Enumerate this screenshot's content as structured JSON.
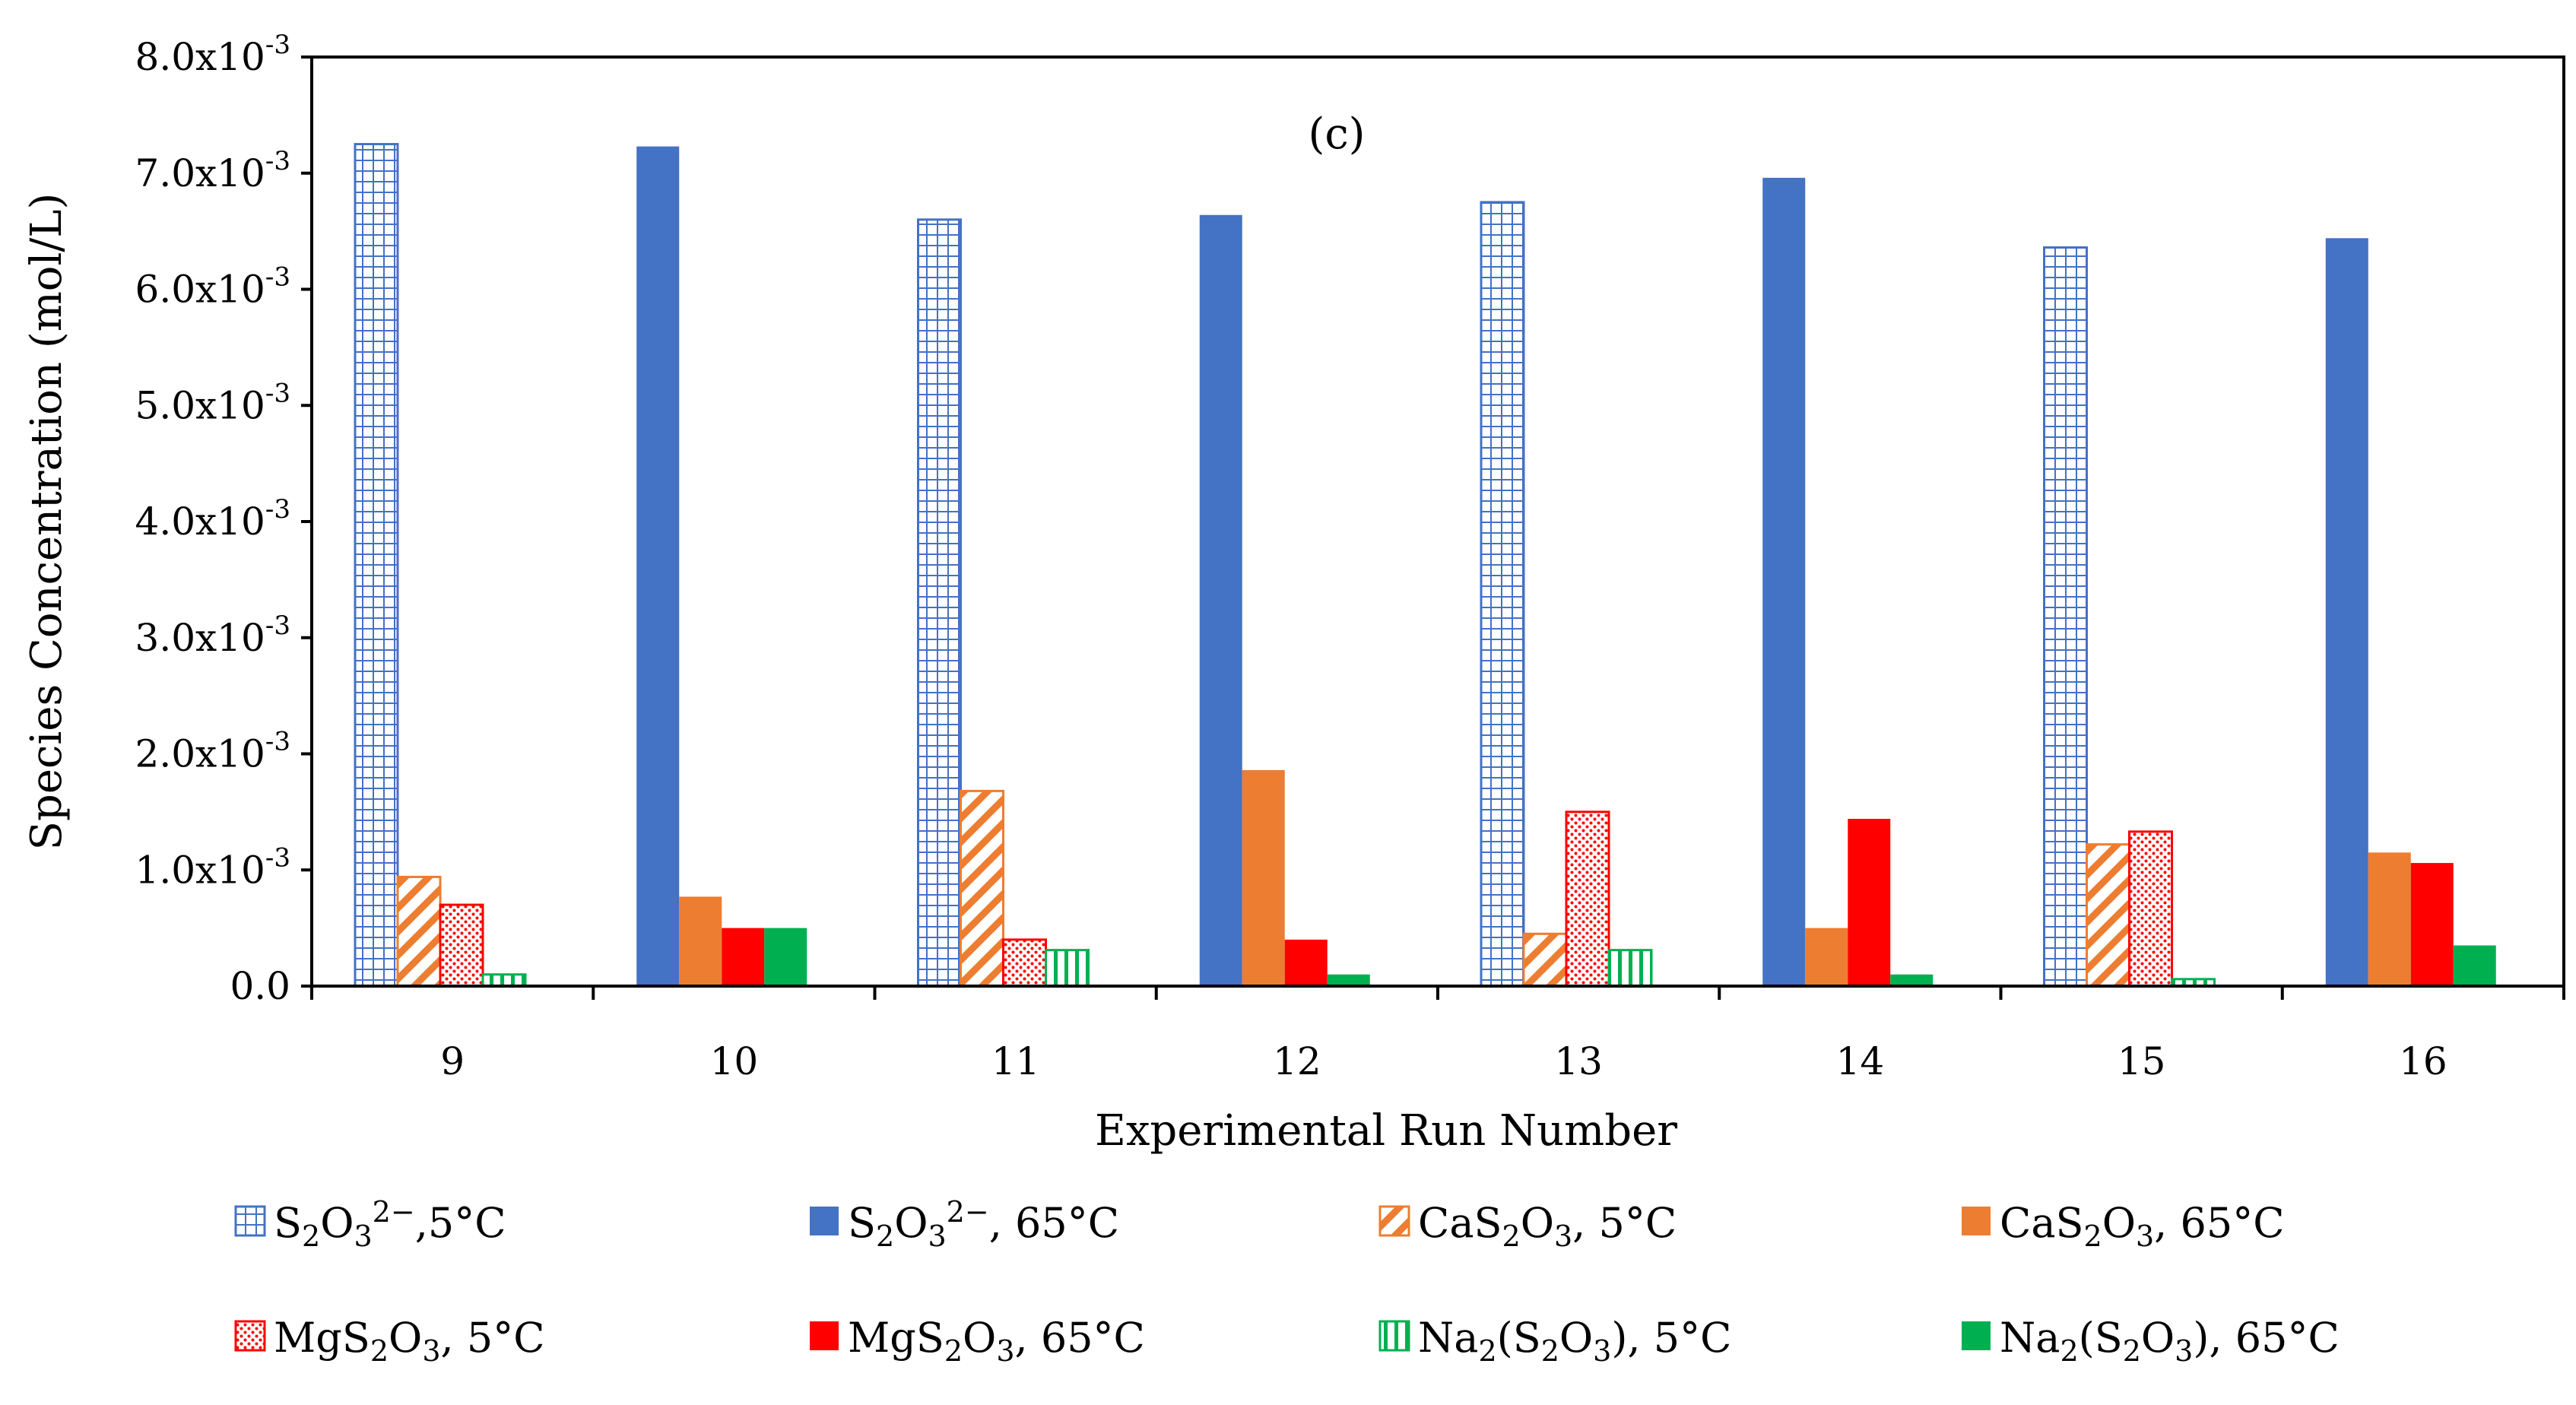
{
  "chart_data": {
    "type": "bar",
    "annotation": "(c)",
    "xlabel": "Experimental Run Number",
    "ylabel": "Species Concentration (mol/L)",
    "ylim": [
      0,
      0.008
    ],
    "yticks": [
      {
        "value": 0.0,
        "mantissa": "0.0",
        "exponent": ""
      },
      {
        "value": 0.001,
        "mantissa": "1.0x10",
        "exponent": "-3"
      },
      {
        "value": 0.002,
        "mantissa": "2.0x10",
        "exponent": "-3"
      },
      {
        "value": 0.003,
        "mantissa": "3.0x10",
        "exponent": "-3"
      },
      {
        "value": 0.004,
        "mantissa": "4.0x10",
        "exponent": "-3"
      },
      {
        "value": 0.005,
        "mantissa": "5.0x10",
        "exponent": "-3"
      },
      {
        "value": 0.006,
        "mantissa": "6.0x10",
        "exponent": "-3"
      },
      {
        "value": 0.007,
        "mantissa": "7.0x10",
        "exponent": "-3"
      },
      {
        "value": 0.008,
        "mantissa": "8.0x10",
        "exponent": "-3"
      }
    ],
    "categories": [
      "9",
      "10",
      "11",
      "12",
      "13",
      "14",
      "15",
      "16"
    ],
    "series": [
      {
        "name": "S2O3 2-, 5°C",
        "label_parts": [
          [
            "S"
          ],
          [
            "2",
            "sub"
          ],
          [
            "O"
          ],
          [
            "3",
            "sub"
          ],
          [
            "2−",
            "sup"
          ],
          [
            ",5°C"
          ]
        ],
        "color": "#4472C4",
        "fill": "grid",
        "values": [
          0.00725,
          0,
          0.0066,
          0,
          0.00675,
          0,
          0.00636,
          0
        ]
      },
      {
        "name": "S2O3 2-, 65°C",
        "label_parts": [
          [
            "S"
          ],
          [
            "2",
            "sub"
          ],
          [
            "O"
          ],
          [
            "3",
            "sub"
          ],
          [
            "2−",
            "sup"
          ],
          [
            ", 65°C"
          ]
        ],
        "color": "#4472C4",
        "fill": "solid",
        "values": [
          0,
          0.00723,
          0,
          0.00664,
          0,
          0.00696,
          0,
          0.00644
        ]
      },
      {
        "name": "CaS2O3, 5°C",
        "label_parts": [
          [
            "CaS"
          ],
          [
            "2",
            "sub"
          ],
          [
            "O"
          ],
          [
            "3",
            "sub"
          ],
          [
            ", 5°C"
          ]
        ],
        "color": "#ED7D31",
        "fill": "diag",
        "values": [
          0.00094,
          0,
          0.00168,
          0,
          0.00045,
          0,
          0.00122,
          0
        ]
      },
      {
        "name": "CaS2O3, 65°C",
        "label_parts": [
          [
            "CaS"
          ],
          [
            "2",
            "sub"
          ],
          [
            "O"
          ],
          [
            "3",
            "sub"
          ],
          [
            ", 65°C"
          ]
        ],
        "color": "#ED7D31",
        "fill": "solid",
        "values": [
          0,
          0.00077,
          0,
          0.00186,
          0,
          0.0005,
          0,
          0.00115
        ]
      },
      {
        "name": "MgS2O3, 5°C",
        "label_parts": [
          [
            "MgS"
          ],
          [
            "2",
            "sub"
          ],
          [
            "O"
          ],
          [
            "3",
            "sub"
          ],
          [
            ", 5°C"
          ]
        ],
        "color": "#FF0000",
        "fill": "dots",
        "values": [
          0.0007,
          0,
          0.0004,
          0,
          0.0015,
          0,
          0.00133,
          0
        ]
      },
      {
        "name": "MgS2O3, 65°C",
        "label_parts": [
          [
            "MgS"
          ],
          [
            "2",
            "sub"
          ],
          [
            "O"
          ],
          [
            "3",
            "sub"
          ],
          [
            ", 65°C"
          ]
        ],
        "color": "#FF0000",
        "fill": "solid",
        "values": [
          0,
          0.0005,
          0,
          0.0004,
          0,
          0.00144,
          0,
          0.00106
        ]
      },
      {
        "name": "Na2(S2O3), 5°C",
        "label_parts": [
          [
            "Na"
          ],
          [
            "2",
            "sub"
          ],
          [
            "(S"
          ],
          [
            "2",
            "sub"
          ],
          [
            "O"
          ],
          [
            "3",
            "sub"
          ],
          [
            "), 5°C"
          ]
        ],
        "color": "#00B050",
        "fill": "vert",
        "values": [
          0.0001,
          0,
          0.00031,
          0,
          0.00031,
          0,
          6e-05,
          0
        ]
      },
      {
        "name": "Na2(S2O3), 65°C",
        "label_parts": [
          [
            "Na"
          ],
          [
            "2",
            "sub"
          ],
          [
            "(S"
          ],
          [
            "2",
            "sub"
          ],
          [
            "O"
          ],
          [
            "3",
            "sub"
          ],
          [
            "), 65°C"
          ]
        ],
        "color": "#00B050",
        "fill": "solid",
        "values": [
          0,
          0.0005,
          0,
          0.0001,
          0,
          0.0001,
          0,
          0.00035
        ]
      }
    ],
    "legend_position": "bottom"
  }
}
